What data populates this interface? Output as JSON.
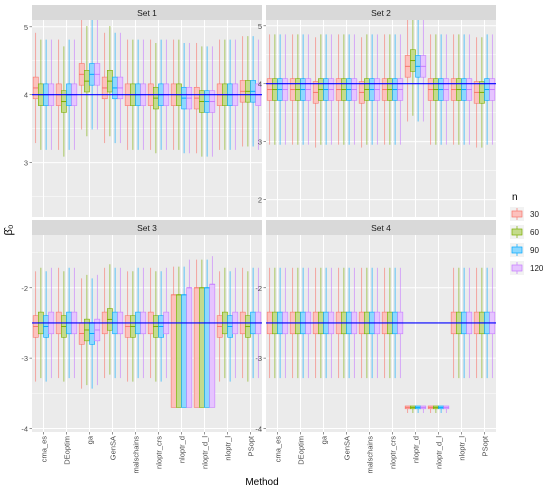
{
  "chart_data": {
    "type": "boxplot",
    "xlabel": "Method",
    "ylabel": "β̂₀",
    "legend": {
      "title": "n",
      "position": "right",
      "entries": [
        {
          "label": "30",
          "color": "#F8766D"
        },
        {
          "label": "60",
          "color": "#7CAE00"
        },
        {
          "label": "90",
          "color": "#00A9FF"
        },
        {
          "label": "120",
          "color": "#C77CFF"
        }
      ]
    },
    "categories": [
      "cma_es",
      "DEoptim",
      "ga",
      "GenSA",
      "malschains",
      "nloptr_crs",
      "nloptr_d",
      "nloptr_d_l",
      "nloptr_l",
      "PSopt"
    ],
    "panels": [
      {
        "title": "Set 1",
        "true_value": 4,
        "y_range": [
          2.2,
          5.1
        ],
        "y_ticks": [
          3,
          4,
          5
        ],
        "medians": [
          [
            4.1,
            4.0,
            4.0,
            4.0
          ],
          [
            4.0,
            3.9,
            4.0,
            4.0
          ],
          [
            4.3,
            4.2,
            4.3,
            4.3
          ],
          [
            4.1,
            4.2,
            4.1,
            4.1
          ],
          [
            4.0,
            4.0,
            4.0,
            4.0
          ],
          [
            4.0,
            3.95,
            4.0,
            4.0
          ],
          [
            4.0,
            4.0,
            3.95,
            3.95
          ],
          [
            3.95,
            3.9,
            3.9,
            3.9
          ],
          [
            4.0,
            4.0,
            4.0,
            4.0
          ],
          [
            4.05,
            4.05,
            4.05,
            4.0
          ]
        ]
      },
      {
        "title": "Set 2",
        "true_value": 4,
        "y_range": [
          1.7,
          5.1
        ],
        "y_ticks": [
          2,
          3,
          4,
          5
        ],
        "medians": [
          [
            3.9,
            3.9,
            3.9,
            3.9
          ],
          [
            3.9,
            3.9,
            3.9,
            3.9
          ],
          [
            3.85,
            3.9,
            3.9,
            3.9
          ],
          [
            3.9,
            3.9,
            3.9,
            3.9
          ],
          [
            3.85,
            3.9,
            3.9,
            3.9
          ],
          [
            3.9,
            3.9,
            3.9,
            3.9
          ],
          [
            4.3,
            4.4,
            4.3,
            4.3
          ],
          [
            3.9,
            3.9,
            3.9,
            3.9
          ],
          [
            3.9,
            3.9,
            3.9,
            3.9
          ],
          [
            3.85,
            3.85,
            3.9,
            3.9
          ]
        ]
      },
      {
        "title": "Set 3",
        "true_value": -2.5,
        "y_range": [
          -4.05,
          -1.25
        ],
        "y_ticks": [
          -4,
          -3,
          -2
        ],
        "medians": [
          [
            -2.55,
            -2.5,
            -2.55,
            -2.5
          ],
          [
            -2.5,
            -2.55,
            -2.5,
            -2.5
          ],
          [
            -2.65,
            -2.6,
            -2.65,
            -2.6
          ],
          [
            -2.5,
            -2.45,
            -2.5,
            -2.5
          ],
          [
            -2.55,
            -2.55,
            -2.5,
            -2.5
          ],
          [
            -2.5,
            -2.55,
            -2.55,
            -2.5
          ],
          [
            -2.1,
            -2.1,
            -2.1,
            -2.0
          ],
          [
            -2.0,
            -2.0,
            -2.0,
            -1.95
          ],
          [
            -2.55,
            -2.5,
            -2.55,
            -2.5
          ],
          [
            -2.5,
            -2.55,
            -2.5,
            -2.5
          ]
        ]
      },
      {
        "title": "Set 4",
        "true_value": -2.5,
        "y_range": [
          -4.05,
          -1.25
        ],
        "y_ticks": [
          -4,
          -3,
          -2
        ],
        "medians": [
          [
            -2.5,
            -2.5,
            -2.5,
            -2.5
          ],
          [
            -2.5,
            -2.5,
            -2.5,
            -2.5
          ],
          [
            -2.5,
            -2.5,
            -2.5,
            -2.5
          ],
          [
            -2.5,
            -2.5,
            -2.5,
            -2.5
          ],
          [
            -2.5,
            -2.5,
            -2.5,
            -2.5
          ],
          [
            -2.5,
            -2.5,
            -2.5,
            -2.5
          ],
          [
            -3.7,
            -3.7,
            -3.7,
            -3.7
          ],
          [
            -3.7,
            -3.7,
            -3.7,
            -3.7
          ],
          [
            -2.5,
            -2.5,
            -2.5,
            -2.5
          ],
          [
            -2.5,
            -2.5,
            -2.5,
            -2.5
          ]
        ]
      }
    ]
  }
}
